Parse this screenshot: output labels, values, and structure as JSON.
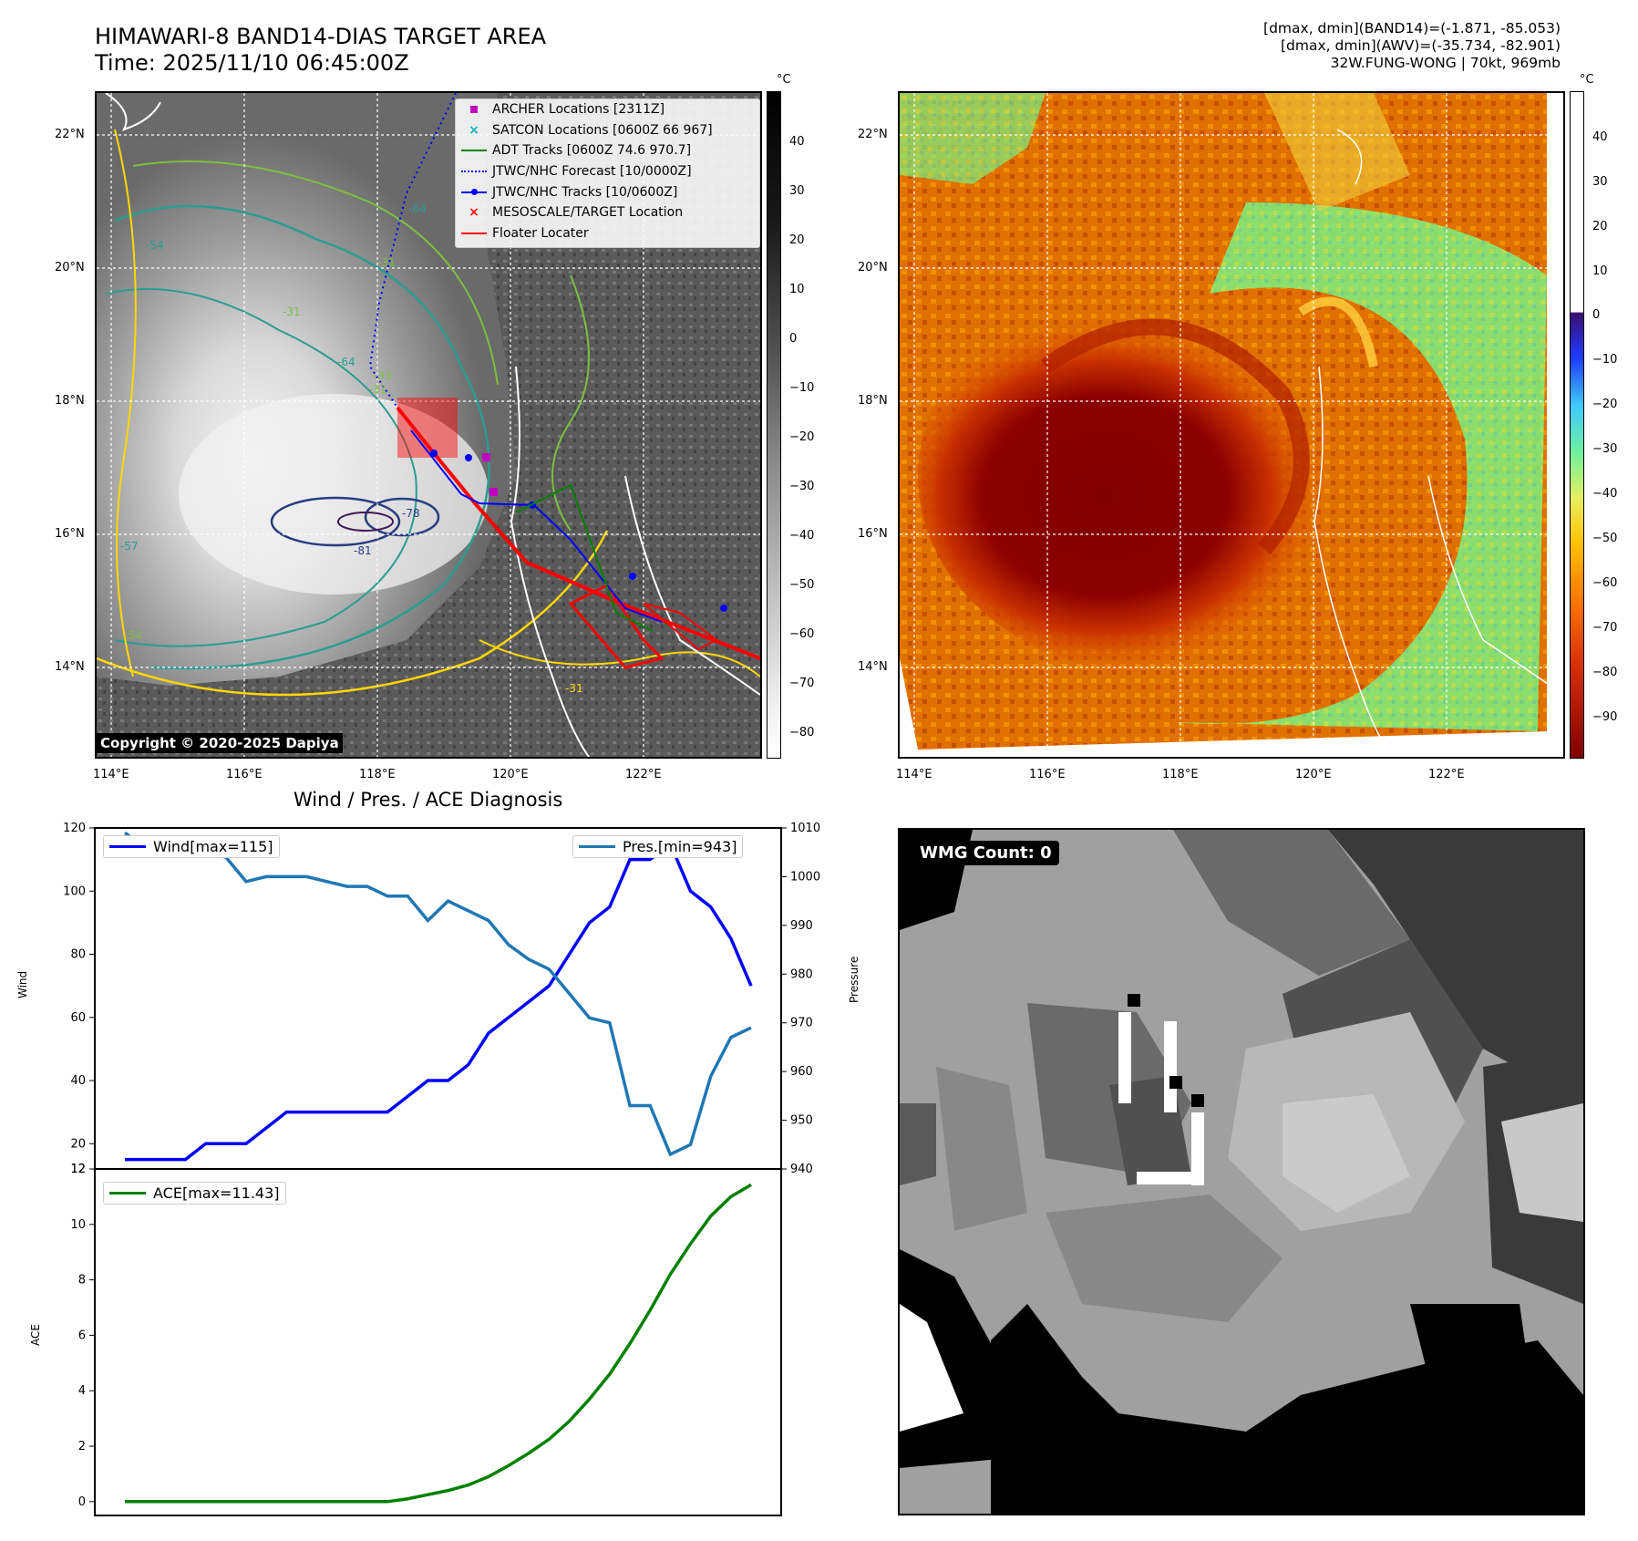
{
  "header": {
    "title_line1": "HIMAWARI-8 BAND14-DIAS TARGET AREA",
    "title_line2": "Time: 2025/11/10 06:45:00Z",
    "info_line1": "[dmax, dmin](BAND14)=(-1.871, -85.053)",
    "info_line2": "[dmax, dmin](AWV)=(-35.734, -82.901)",
    "info_line3": "32W.FUNG-WONG | 70kt, 969mb"
  },
  "map_axes": {
    "lat_labels": [
      "22°N",
      "20°N",
      "18°N",
      "16°N",
      "14°N"
    ],
    "lon_labels": [
      "114°E",
      "116°E",
      "118°E",
      "120°E",
      "122°E"
    ]
  },
  "ir_panel": {
    "copyright": "Copyright © 2020-2025 Dapiya",
    "contour_labels": [
      "-81",
      "-78",
      "-64",
      "-64",
      "-54",
      "-31",
      "-31",
      "-54",
      "-31",
      "-31",
      "-33",
      "-57"
    ],
    "colorbar": {
      "unit": "°C",
      "ticks": [
        "40",
        "30",
        "20",
        "10",
        "0",
        "−10",
        "−20",
        "−30",
        "−40",
        "−50",
        "−60",
        "−70",
        "−80"
      ]
    },
    "legend": [
      {
        "label": "ARCHER Locations [2311Z]",
        "marker": "square",
        "color": "#c000c0"
      },
      {
        "label": "SATCON Locations [0600Z 66 967]",
        "marker": "x",
        "color": "#00b8b8"
      },
      {
        "label": "ADT Tracks [0600Z 74.6 970.7]",
        "marker": "line",
        "color": "#008000"
      },
      {
        "label": "JTWC/NHC Forecast [10/0000Z]",
        "marker": "dotted",
        "color": "#0000ff"
      },
      {
        "label": "JTWC/NHC Tracks [10/0600Z]",
        "marker": "line-dot",
        "color": "#0000ff"
      },
      {
        "label": "MESOSCALE/TARGET Location",
        "marker": "x",
        "color": "#ff0000"
      },
      {
        "label": "Floater Locater",
        "marker": "line",
        "color": "#ff0000"
      }
    ]
  },
  "awv_panel": {
    "colorbar": {
      "unit": "°C",
      "ticks": [
        "40",
        "30",
        "20",
        "10",
        "0",
        "−10",
        "−20",
        "−30",
        "−40",
        "−50",
        "−60",
        "−70",
        "−80",
        "−90"
      ]
    }
  },
  "wmg_panel": {
    "label": "WMG Count: 0"
  },
  "chart_data": [
    {
      "type": "line",
      "title": "Wind / Pres. / ACE Diagnosis",
      "ylabel": "Wind",
      "y2label": "Pressure",
      "ylim": [
        12,
        120
      ],
      "y2lim": [
        940,
        1010
      ],
      "x": [
        0,
        1,
        2,
        3,
        4,
        5,
        6,
        7,
        8,
        9,
        10,
        11,
        12,
        13,
        14,
        15,
        16,
        17,
        18,
        19,
        20,
        21,
        22,
        23,
        24,
        25,
        26,
        27,
        28,
        29,
        30,
        31
      ],
      "series": [
        {
          "name": "Wind[max=115]",
          "axis": "left",
          "color": "#0000ff",
          "values": [
            15,
            15,
            15,
            15,
            20,
            20,
            20,
            25,
            30,
            30,
            30,
            30,
            30,
            30,
            35,
            40,
            40,
            45,
            55,
            60,
            65,
            70,
            80,
            90,
            95,
            110,
            110,
            115,
            100,
            95,
            85,
            70
          ]
        },
        {
          "name": "Pres.[min=943]",
          "axis": "right",
          "color": "#1f77b4",
          "values": [
            1009,
            1006,
            1006,
            1006,
            1005,
            1004,
            999,
            1000,
            1000,
            1000,
            999,
            998,
            998,
            996,
            996,
            991,
            995,
            993,
            991,
            986,
            983,
            981,
            976,
            971,
            970,
            953,
            953,
            943,
            945,
            959,
            967,
            969
          ]
        }
      ]
    },
    {
      "type": "line",
      "ylabel": "ACE",
      "ylim": [
        -0.5,
        12
      ],
      "yticks": [
        0,
        2,
        4,
        6,
        8,
        10,
        12
      ],
      "x": [
        0,
        1,
        2,
        3,
        4,
        5,
        6,
        7,
        8,
        9,
        10,
        11,
        12,
        13,
        14,
        15,
        16,
        17,
        18,
        19,
        20,
        21,
        22,
        23,
        24,
        25,
        26,
        27,
        28,
        29,
        30,
        31
      ],
      "series": [
        {
          "name": "ACE[max=11.43]",
          "color": "#008000",
          "values": [
            0,
            0,
            0,
            0,
            0,
            0,
            0,
            0,
            0,
            0,
            0,
            0,
            0,
            0,
            0.1,
            0.25,
            0.4,
            0.6,
            0.9,
            1.3,
            1.75,
            2.25,
            2.9,
            3.7,
            4.6,
            5.7,
            6.9,
            8.2,
            9.3,
            10.3,
            11.0,
            11.43
          ]
        }
      ]
    }
  ]
}
